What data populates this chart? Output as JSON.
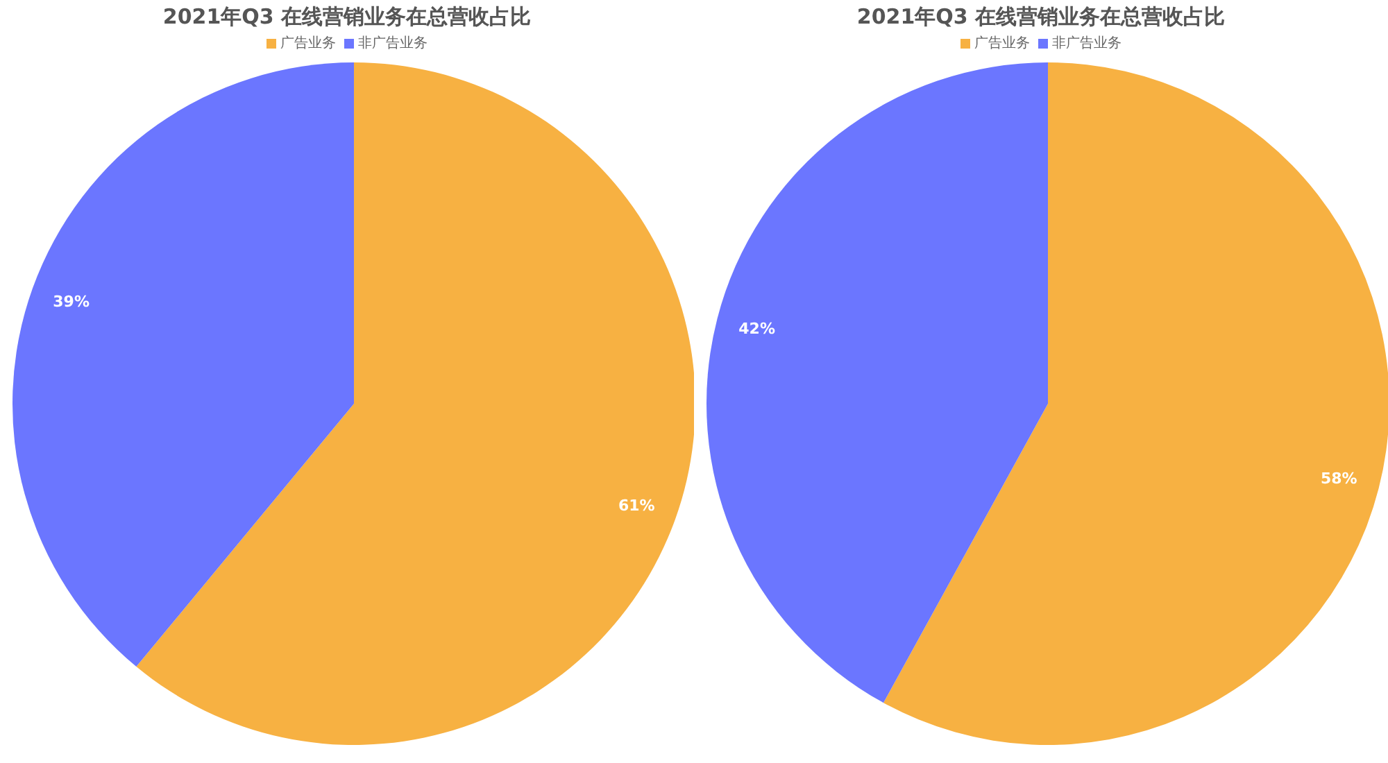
{
  "chart_data": [
    {
      "type": "pie",
      "title": "2021年Q3 在线营销业务在总营收占比",
      "categories": [
        "广告业务",
        "非广告业务"
      ],
      "values": [
        61,
        39
      ],
      "colors": [
        "#f7b142",
        "#6b76ff"
      ],
      "value_labels": [
        "61%",
        "39%"
      ],
      "legend": "top"
    },
    {
      "type": "pie",
      "title": "2021年Q3 在线营销业务在总营收占比",
      "categories": [
        "广告业务",
        "非广告业务"
      ],
      "values": [
        58,
        42
      ],
      "colors": [
        "#f7b142",
        "#6b76ff"
      ],
      "value_labels": [
        "58%",
        "42%"
      ],
      "legend": "top"
    }
  ]
}
